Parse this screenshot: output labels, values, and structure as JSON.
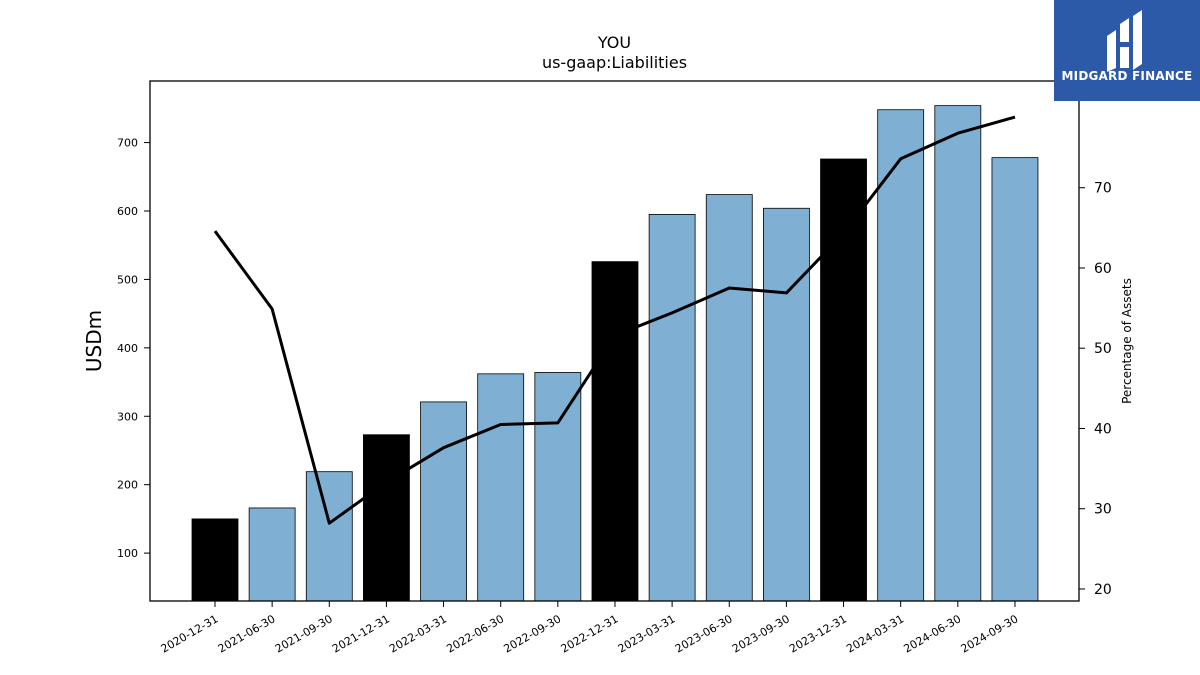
{
  "brand": {
    "name": "MIDGARD FINANCE",
    "bg_color": "#2c5aa8",
    "icon": "midgard-logo-icon"
  },
  "chart_data": {
    "type": "bar",
    "title": "YOU",
    "subtitle": "us-gaap:Liabilities",
    "ylabel": "USDm",
    "y2label": "Percentage of Assets",
    "ylim": [
      30,
      790
    ],
    "y2lim": [
      18.5,
      83.3
    ],
    "yticks": [
      100,
      200,
      300,
      400,
      500,
      600,
      700
    ],
    "y2ticks": [
      20,
      30,
      40,
      50,
      60,
      70
    ],
    "grid": false,
    "categories": [
      "2020-12-31",
      "2021-06-30",
      "2021-09-30",
      "2021-12-31",
      "2022-03-31",
      "2022-06-30",
      "2022-09-30",
      "2022-12-31",
      "2023-03-31",
      "2023-06-30",
      "2023-09-30",
      "2023-12-31",
      "2024-03-31",
      "2024-06-30",
      "2024-09-30"
    ],
    "series": [
      {
        "values": [
          150,
          166,
          219,
          273,
          321,
          362,
          364,
          526,
          595,
          624,
          604,
          676,
          748,
          754,
          678
        ],
        "colors": [
          "#000000",
          "#7fafd3",
          "#7fafd3",
          "#000000",
          "#7fafd3",
          "#7fafd3",
          "#7fafd3",
          "#000000",
          "#7fafd3",
          "#7fafd3",
          "#7fafd3",
          "#000000",
          "#7fafd3",
          "#7fafd3",
          "#7fafd3"
        ],
        "axis": "left"
      },
      {
        "type": "line",
        "values": [
          64.6,
          54.9,
          28.2,
          33.3,
          37.6,
          40.5,
          40.7,
          51.6,
          54.4,
          57.5,
          56.9,
          64.3,
          73.6,
          76.8,
          78.8
        ],
        "color": "#000000",
        "axis": "right"
      }
    ]
  }
}
